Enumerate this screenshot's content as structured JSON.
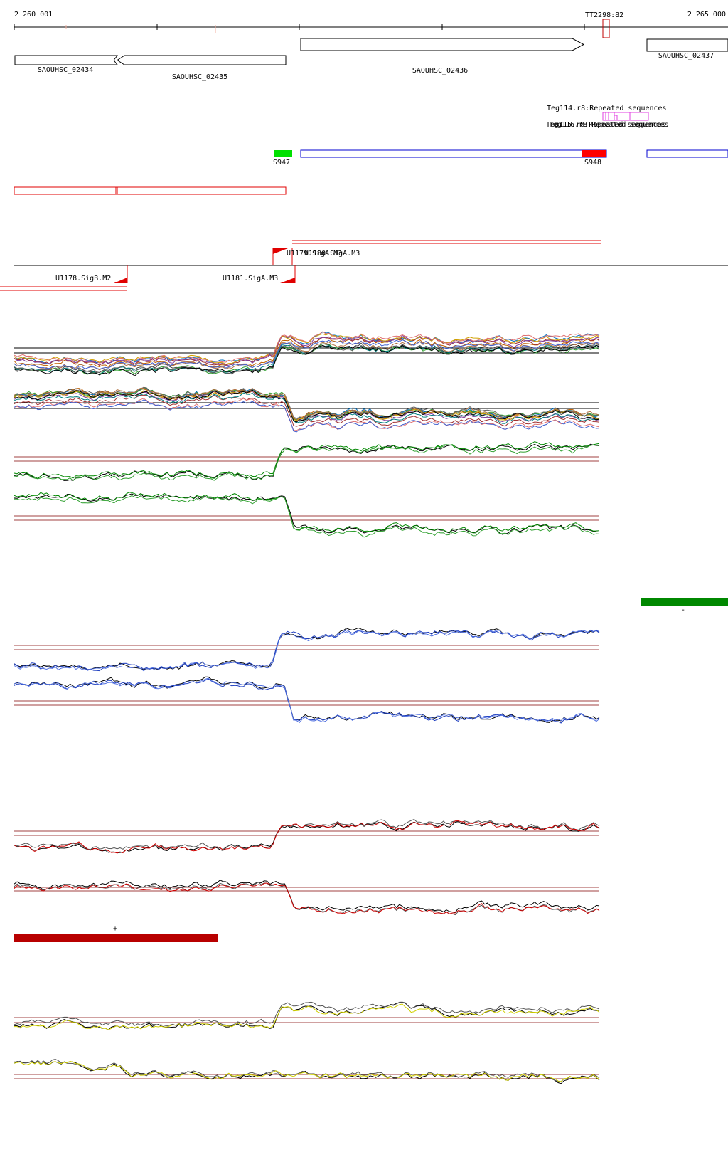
{
  "ruler": {
    "start": "2 260 001",
    "end": "2 265 000",
    "marker": "TT2298:82"
  },
  "genes": [
    {
      "label": "SAOUHSC_02434"
    },
    {
      "label": "SAOUHSC_02435"
    },
    {
      "label": "SAOUHSC_02436"
    },
    {
      "label": "SAOUHSC_02437"
    }
  ],
  "repeats": {
    "label": "Teg114.r8:Repeated sequences",
    "overlapping_labels": [
      "Teg115.r8:Repeated sequences",
      "Teg116.r8:Repeated sequences"
    ]
  },
  "regions": [
    "S947",
    "S948"
  ],
  "promoters": [
    "U1178.SigB.M2",
    "U1181.SigA.M3",
    "U1179.SigA.M3",
    "U1180.SigA.M3"
  ],
  "strand_marks": [
    "-",
    "+"
  ]
}
